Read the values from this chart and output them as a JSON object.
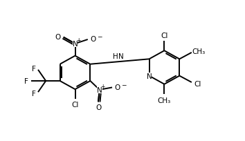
{
  "bg_color": "#ffffff",
  "line_color": "#000000",
  "lw": 1.4,
  "fig_width": 3.54,
  "fig_height": 2.05,
  "dpi": 100,
  "font_size": 7.5,
  "xlim": [
    0,
    10
  ],
  "ylim": [
    0,
    6
  ]
}
